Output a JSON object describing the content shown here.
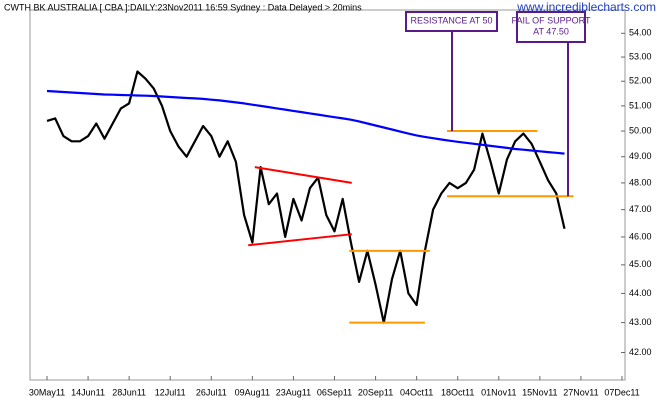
{
  "chart_data": {
    "type": "line",
    "title": "CWTH BK AUSTRALIA [ CBA ]:DAILY:23Nov2011 16:59 Sydney : Data Delayed > 20mins",
    "source": "www.incrediblecharts.com",
    "categories": [
      "30May11",
      null,
      null,
      null,
      null,
      "14Jun11",
      null,
      null,
      null,
      null,
      "28Jun11",
      null,
      null,
      null,
      null,
      "12Jul11",
      null,
      null,
      null,
      null,
      "26Jul11",
      null,
      null,
      null,
      null,
      "09Aug11",
      null,
      null,
      null,
      null,
      "23Aug11",
      null,
      null,
      null,
      null,
      "06Sep11",
      null,
      null,
      null,
      null,
      "20Sep11",
      null,
      null,
      null,
      null,
      "04Oct11",
      null,
      null,
      null,
      null,
      "18Oct11",
      null,
      null,
      null,
      null,
      "01Nov11",
      null,
      null,
      null,
      null,
      "15Nov11",
      null,
      null,
      null,
      null,
      "27Nov11",
      null,
      null,
      null,
      null,
      "07Dec11"
    ],
    "series": [
      {
        "color": "#000000",
        "values": [
          50.4,
          50.5,
          49.8,
          49.6,
          49.6,
          49.8,
          50.3,
          49.7,
          50.3,
          50.9,
          51.1,
          52.4,
          52.1,
          51.7,
          51.0,
          50.0,
          49.4,
          49.0,
          49.6,
          50.2,
          49.8,
          49.0,
          49.6,
          48.8,
          46.8,
          45.8,
          48.6,
          47.2,
          47.6,
          46.0,
          47.4,
          46.6,
          47.8,
          48.2,
          46.8,
          46.2,
          47.4,
          45.8,
          44.4,
          45.5,
          44.3,
          43.0,
          44.5,
          45.5,
          44.0,
          43.6,
          45.5,
          47.0,
          47.6,
          48.0,
          47.8,
          48.0,
          48.5,
          49.9,
          48.8,
          47.6,
          48.9,
          49.6,
          49.9,
          49.5,
          48.8,
          48.1,
          47.6,
          46.3,
          null,
          null,
          null,
          null,
          null,
          null,
          null
        ]
      },
      {
        "color": "#0000ff",
        "values": [
          51.6,
          51.58,
          51.56,
          51.54,
          51.52,
          51.5,
          51.48,
          51.46,
          51.45,
          51.44,
          51.43,
          51.42,
          51.41,
          51.4,
          51.38,
          51.36,
          51.34,
          51.32,
          51.3,
          51.28,
          51.25,
          51.22,
          51.18,
          51.14,
          51.1,
          51.05,
          51.0,
          50.95,
          50.9,
          50.85,
          50.8,
          50.75,
          50.7,
          50.65,
          50.6,
          50.55,
          50.5,
          50.45,
          50.38,
          50.3,
          50.22,
          50.14,
          50.06,
          49.98,
          49.9,
          49.83,
          49.77,
          49.72,
          49.67,
          49.62,
          49.58,
          49.54,
          49.5,
          49.46,
          49.42,
          49.38,
          49.34,
          49.3,
          49.27,
          49.24,
          49.21,
          49.18,
          49.15,
          49.12,
          null,
          null,
          null,
          null,
          null,
          null,
          null
        ]
      }
    ],
    "ylim": [
      41.1,
      55
    ],
    "log": true,
    "yticks": [
      {
        "value": 42,
        "label": "42.00"
      },
      {
        "value": 43,
        "label": "43.00"
      },
      {
        "value": 44,
        "label": "44.00"
      },
      {
        "value": 45,
        "label": "45.00"
      },
      {
        "value": 46,
        "label": "46.00"
      },
      {
        "value": 47,
        "label": "47.00"
      },
      {
        "value": 48,
        "label": "48.00"
      },
      {
        "value": 49,
        "label": "49.00"
      },
      {
        "value": 50,
        "label": "50.00"
      },
      {
        "value": 51,
        "label": "51.00"
      },
      {
        "value": 52,
        "label": "52.00"
      },
      {
        "value": 53,
        "label": "53.00"
      },
      {
        "value": 54,
        "label": "54.00"
      }
    ],
    "lines": [
      {
        "x": [
          25.3,
          37.1
        ],
        "y": [
          48.6,
          48.0
        ],
        "color": "#ff0000"
      },
      {
        "x": [
          24.5,
          37.1
        ],
        "y": [
          45.7,
          46.1
        ],
        "color": "#ff0000"
      },
      {
        "x": [
          36.8,
          46.6
        ],
        "y": [
          45.5,
          45.5
        ],
        "color": "#ff9900"
      },
      {
        "x": [
          36.8,
          46.0
        ],
        "y": [
          43,
          43
        ],
        "color": "#ff9900"
      },
      {
        "x": [
          48.7,
          59.7
        ],
        "y": [
          50,
          50
        ],
        "color": "#ff9900"
      },
      {
        "x": [
          48.7,
          64.1
        ],
        "y": [
          47.5,
          47.5
        ],
        "color": "#ff9900"
      }
    ],
    "notes": [
      {
        "text": [
          "RESISTANCE AT 50"
        ]
      },
      {
        "text": [
          "FAIL OF SUPPORT",
          "AT 47.50"
        ]
      }
    ]
  }
}
